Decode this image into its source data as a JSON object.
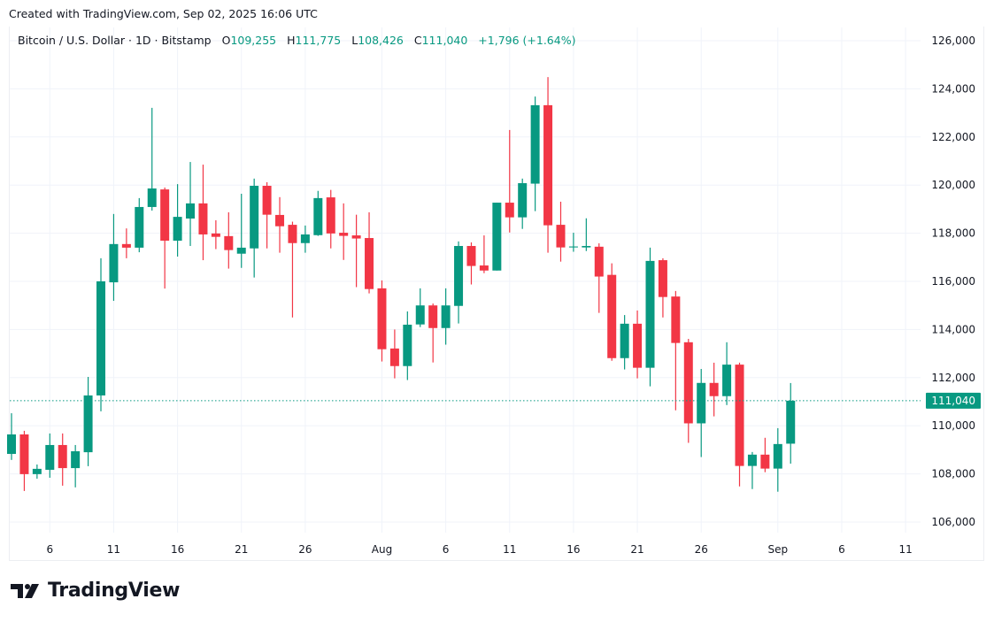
{
  "credit": "Created with TradingView.com, Sep 02, 2025 16:06 UTC",
  "legend": {
    "symbol": "Bitcoin / U.S. Dollar · 1D · Bitstamp",
    "o_label": "O",
    "o": "109,255",
    "h_label": "H",
    "h": "111,775",
    "l_label": "L",
    "l": "108,426",
    "c_label": "C",
    "c": "111,040",
    "change": "+1,796 (+1.64%)"
  },
  "logo": {
    "text": "TradingView"
  },
  "chart_data": {
    "type": "candlestick",
    "colors": {
      "up": "#089981",
      "down": "#F23645",
      "grid": "#f0f3fa",
      "last_price": "#089981"
    },
    "ylim": [
      105000,
      126500
    ],
    "grid": true,
    "y_ticks": [
      "106,000",
      "108,000",
      "110,000",
      "112,000",
      "114,000",
      "116,000",
      "118,000",
      "120,000",
      "122,000",
      "124,000",
      "126,000"
    ],
    "y_tick_values": [
      106000,
      108000,
      110000,
      112000,
      114000,
      116000,
      118000,
      120000,
      122000,
      124000,
      126000
    ],
    "x_ticks": [
      {
        "date": "Jul 6",
        "label": "6"
      },
      {
        "date": "Jul 11",
        "label": "11"
      },
      {
        "date": "Jul 16",
        "label": "16"
      },
      {
        "date": "Jul 21",
        "label": "21"
      },
      {
        "date": "Jul 26",
        "label": "26"
      },
      {
        "date": "Aug 1",
        "label": "Aug"
      },
      {
        "date": "Aug 6",
        "label": "6"
      },
      {
        "date": "Aug 11",
        "label": "11"
      },
      {
        "date": "Aug 16",
        "label": "16"
      },
      {
        "date": "Aug 21",
        "label": "21"
      },
      {
        "date": "Aug 26",
        "label": "26"
      },
      {
        "date": "Sep 1",
        "label": "Sep"
      },
      {
        "date": "Sep 6",
        "label": "6"
      },
      {
        "date": "Sep 11",
        "label": "11"
      }
    ],
    "date_range": [
      "Jul 3",
      "Sep 11"
    ],
    "last_price": 111040,
    "last_price_label": "111,040",
    "candles": [
      {
        "date": "Jul 3",
        "o": 108830,
        "h": 110520,
        "l": 108580,
        "c": 109640
      },
      {
        "date": "Jul 4",
        "o": 109640,
        "h": 109790,
        "l": 107290,
        "c": 107990
      },
      {
        "date": "Jul 5",
        "o": 107990,
        "h": 108390,
        "l": 107800,
        "c": 108210
      },
      {
        "date": "Jul 6",
        "o": 108170,
        "h": 109680,
        "l": 107840,
        "c": 109200
      },
      {
        "date": "Jul 7",
        "o": 109200,
        "h": 109680,
        "l": 107510,
        "c": 108240
      },
      {
        "date": "Jul 8",
        "o": 108240,
        "h": 109200,
        "l": 107440,
        "c": 108940
      },
      {
        "date": "Jul 9",
        "o": 108900,
        "h": 112030,
        "l": 108320,
        "c": 111260
      },
      {
        "date": "Jul 10",
        "o": 111260,
        "h": 116960,
        "l": 110600,
        "c": 116000
      },
      {
        "date": "Jul 11",
        "o": 115960,
        "h": 118800,
        "l": 115190,
        "c": 117550
      },
      {
        "date": "Jul 12",
        "o": 117550,
        "h": 118200,
        "l": 116960,
        "c": 117400
      },
      {
        "date": "Jul 13",
        "o": 117400,
        "h": 119460,
        "l": 117210,
        "c": 119090
      },
      {
        "date": "Jul 14",
        "o": 119090,
        "h": 123210,
        "l": 118940,
        "c": 119860
      },
      {
        "date": "Jul 15",
        "o": 119820,
        "h": 119900,
        "l": 115700,
        "c": 117690
      },
      {
        "date": "Jul 16",
        "o": 117690,
        "h": 120040,
        "l": 117030,
        "c": 118680
      },
      {
        "date": "Jul 17",
        "o": 118610,
        "h": 120960,
        "l": 117470,
        "c": 119240
      },
      {
        "date": "Jul 18",
        "o": 119240,
        "h": 120850,
        "l": 116880,
        "c": 117950
      },
      {
        "date": "Jul 19",
        "o": 117990,
        "h": 118540,
        "l": 117340,
        "c": 117850
      },
      {
        "date": "Jul 20",
        "o": 117880,
        "h": 118870,
        "l": 116530,
        "c": 117300
      },
      {
        "date": "Jul 21",
        "o": 117150,
        "h": 119640,
        "l": 116560,
        "c": 117400
      },
      {
        "date": "Jul 22",
        "o": 117370,
        "h": 120270,
        "l": 116160,
        "c": 119970
      },
      {
        "date": "Jul 23",
        "o": 119970,
        "h": 120120,
        "l": 117370,
        "c": 118770
      },
      {
        "date": "Jul 24",
        "o": 118760,
        "h": 119500,
        "l": 117190,
        "c": 118290
      },
      {
        "date": "Jul 25",
        "o": 118350,
        "h": 118480,
        "l": 114500,
        "c": 117590
      },
      {
        "date": "Jul 26",
        "o": 117590,
        "h": 118320,
        "l": 117190,
        "c": 117950
      },
      {
        "date": "Jul 27",
        "o": 117920,
        "h": 119760,
        "l": 117890,
        "c": 119460
      },
      {
        "date": "Jul 28",
        "o": 119490,
        "h": 119800,
        "l": 117370,
        "c": 117990
      },
      {
        "date": "Jul 29",
        "o": 118020,
        "h": 119240,
        "l": 116890,
        "c": 117890
      },
      {
        "date": "Jul 30",
        "o": 117910,
        "h": 118770,
        "l": 115760,
        "c": 117780
      },
      {
        "date": "Jul 31",
        "o": 117800,
        "h": 118870,
        "l": 115500,
        "c": 115680
      },
      {
        "date": "Aug 1",
        "o": 115710,
        "h": 116040,
        "l": 112670,
        "c": 113180
      },
      {
        "date": "Aug 2",
        "o": 113210,
        "h": 114000,
        "l": 111970,
        "c": 112480
      },
      {
        "date": "Aug 3",
        "o": 112480,
        "h": 114750,
        "l": 111900,
        "c": 114200
      },
      {
        "date": "Aug 4",
        "o": 114210,
        "h": 115710,
        "l": 114100,
        "c": 115000
      },
      {
        "date": "Aug 5",
        "o": 115000,
        "h": 115080,
        "l": 112630,
        "c": 114060
      },
      {
        "date": "Aug 6",
        "o": 114060,
        "h": 115710,
        "l": 113370,
        "c": 115000
      },
      {
        "date": "Aug 7",
        "o": 114980,
        "h": 117660,
        "l": 114250,
        "c": 117470
      },
      {
        "date": "Aug 8",
        "o": 117470,
        "h": 117620,
        "l": 115870,
        "c": 116640
      },
      {
        "date": "Aug 9",
        "o": 116660,
        "h": 117910,
        "l": 116340,
        "c": 116450
      },
      {
        "date": "Aug 10",
        "o": 116450,
        "h": 119270,
        "l": 116450,
        "c": 119270
      },
      {
        "date": "Aug 11",
        "o": 119270,
        "h": 122290,
        "l": 118030,
        "c": 118660
      },
      {
        "date": "Aug 12",
        "o": 118660,
        "h": 120270,
        "l": 118180,
        "c": 120080
      },
      {
        "date": "Aug 13",
        "o": 120060,
        "h": 123680,
        "l": 118920,
        "c": 123320
      },
      {
        "date": "Aug 14",
        "o": 123320,
        "h": 124490,
        "l": 117190,
        "c": 118330
      },
      {
        "date": "Aug 15",
        "o": 118350,
        "h": 119310,
        "l": 116820,
        "c": 117410
      },
      {
        "date": "Aug 16",
        "o": 117410,
        "h": 118020,
        "l": 117230,
        "c": 117450
      },
      {
        "date": "Aug 17",
        "o": 117410,
        "h": 118620,
        "l": 117260,
        "c": 117470
      },
      {
        "date": "Aug 18",
        "o": 117440,
        "h": 117580,
        "l": 114690,
        "c": 116200
      },
      {
        "date": "Aug 19",
        "o": 116270,
        "h": 116750,
        "l": 112700,
        "c": 112810
      },
      {
        "date": "Aug 20",
        "o": 112810,
        "h": 114600,
        "l": 112340,
        "c": 114240
      },
      {
        "date": "Aug 21",
        "o": 114240,
        "h": 114790,
        "l": 111970,
        "c": 112410
      },
      {
        "date": "Aug 22",
        "o": 112410,
        "h": 117400,
        "l": 111640,
        "c": 116850
      },
      {
        "date": "Aug 23",
        "o": 116880,
        "h": 116960,
        "l": 114500,
        "c": 115350
      },
      {
        "date": "Aug 24",
        "o": 115370,
        "h": 115600,
        "l": 110640,
        "c": 113440
      },
      {
        "date": "Aug 25",
        "o": 113470,
        "h": 113610,
        "l": 109290,
        "c": 110100
      },
      {
        "date": "Aug 26",
        "o": 110100,
        "h": 112360,
        "l": 108700,
        "c": 111780
      },
      {
        "date": "Aug 27",
        "o": 111780,
        "h": 112620,
        "l": 110390,
        "c": 111230
      },
      {
        "date": "Aug 28",
        "o": 111230,
        "h": 113470,
        "l": 110860,
        "c": 112540
      },
      {
        "date": "Aug 29",
        "o": 112540,
        "h": 112620,
        "l": 107480,
        "c": 108330
      },
      {
        "date": "Aug 30",
        "o": 108330,
        "h": 108910,
        "l": 107370,
        "c": 108800
      },
      {
        "date": "Aug 31",
        "o": 108800,
        "h": 109500,
        "l": 108070,
        "c": 108220
      },
      {
        "date": "Sep 1",
        "o": 108220,
        "h": 109900,
        "l": 107260,
        "c": 109240
      },
      {
        "date": "Sep 2",
        "o": 109255,
        "h": 111775,
        "l": 108426,
        "c": 111040
      }
    ]
  }
}
